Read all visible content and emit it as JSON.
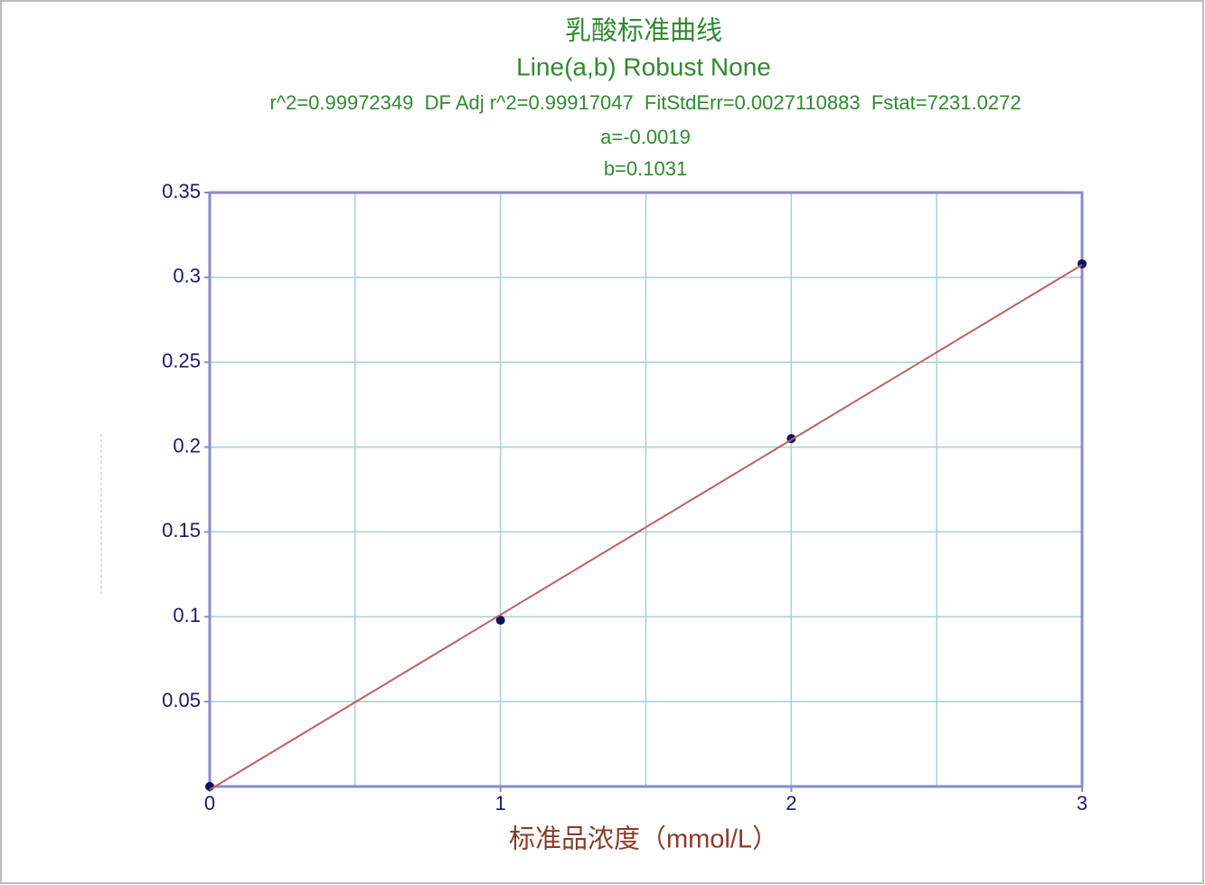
{
  "chart_data": {
    "type": "scatter",
    "title": "乳酸标准曲线",
    "subtitle": "Line(a,b) Robust None",
    "stats": "r^2=0.99972349  DF Adj r^2=0.99917047  FitStdErr=0.0027110883  Fstat=7231.0272",
    "annotations": [
      "a=-0.0019",
      "b=0.1031"
    ],
    "x_label": "标准品浓度（mmol/L）",
    "series": [
      {
        "x": [
          0,
          1,
          2,
          3
        ],
        "values": [
          0,
          0.098,
          0.205,
          0.308
        ],
        "color": "#101060",
        "mode": "points"
      },
      {
        "x": [
          0,
          3
        ],
        "values": [
          -0.0019,
          0.3074
        ],
        "color": "#c06060",
        "mode": "line"
      }
    ],
    "xlim": [
      0,
      3
    ],
    "xticks": [
      0,
      1,
      2,
      3
    ],
    "x_minor_grid": [
      0.5,
      1.5,
      2.5
    ],
    "ylim": [
      0,
      0.35
    ],
    "yticks": [
      0.05,
      0.1,
      0.15,
      0.2,
      0.25,
      0.3,
      0.35
    ],
    "grid": true
  }
}
